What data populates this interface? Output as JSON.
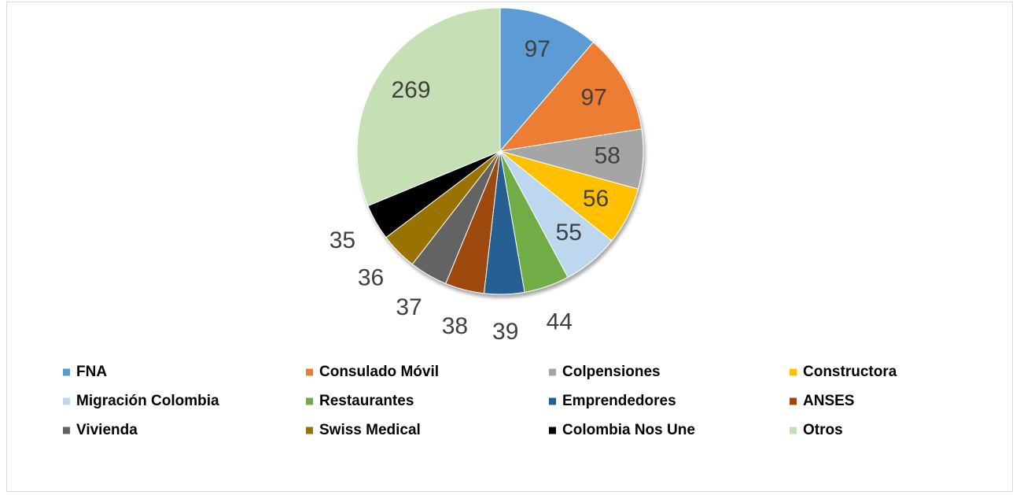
{
  "chart_data": {
    "type": "pie",
    "categories": [
      "FNA",
      "Consulado Móvil",
      "Colpensiones",
      "Constructora",
      "Migración Colombia",
      "Restaurantes",
      "Emprendedores",
      "ANSES",
      "Vivienda",
      "Swiss Medical",
      "Colombia Nos Une",
      "Otros"
    ],
    "values": [
      97,
      97,
      58,
      56,
      55,
      44,
      39,
      38,
      37,
      36,
      35,
      269
    ],
    "colors": [
      "#5b9bd5",
      "#ed7d31",
      "#a5a5a5",
      "#ffc000",
      "#bdd7ee",
      "#70ad47",
      "#255e91",
      "#9e480e",
      "#636363",
      "#997300",
      "#000000",
      "#c5e0b4"
    ],
    "legend": "bottom"
  }
}
